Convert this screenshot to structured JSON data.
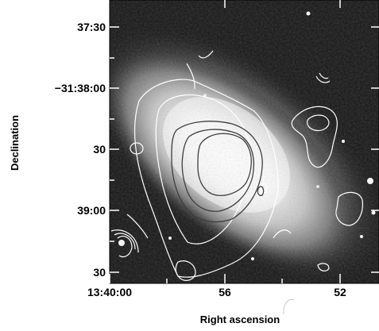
{
  "figure": {
    "xlabel": "Right ascension",
    "ylabel": "Declination",
    "x_ticks": [
      "13:40:00",
      "56",
      "52"
    ],
    "y_ticks": [
      "37:30",
      "−31:38:00",
      "30",
      "39:00",
      "30"
    ]
  },
  "chart_data": {
    "type": "image",
    "xlabel": "Right ascension",
    "ylabel": "Declination",
    "x_ticks": [
      "13:40:00",
      "56",
      "52"
    ],
    "y_ticks": [
      "37:30",
      "−31:38:00",
      "30",
      "39:00",
      "30"
    ],
    "background": "greyscale optical image of an elongated galaxy",
    "overlays": [
      "white contours",
      "dark grey contours"
    ]
  }
}
